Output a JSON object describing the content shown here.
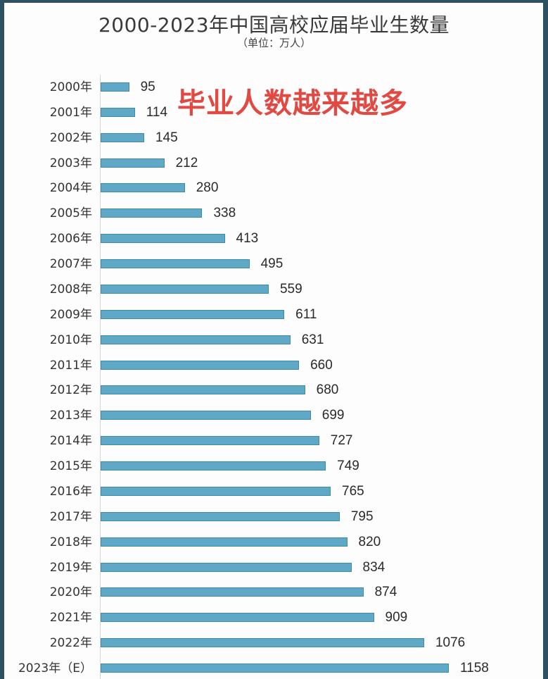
{
  "chart_data": {
    "type": "bar",
    "orientation": "horizontal",
    "title": "2000-2023年中国高校应届毕业生数量",
    "subtitle": "（单位：万人）",
    "annotation": "毕业人数越来越多",
    "xlabel": "",
    "ylabel": "",
    "grid": false,
    "legend": null,
    "categories": [
      "2000年",
      "2001年",
      "2002年",
      "2003年",
      "2004年",
      "2005年",
      "2006年",
      "2007年",
      "2008年",
      "2009年",
      "2010年",
      "2011年",
      "2012年",
      "2013年",
      "2014年",
      "2015年",
      "2016年",
      "2017年",
      "2018年",
      "2019年",
      "2020年",
      "2021年",
      "2022年",
      "2023年（E）"
    ],
    "values": [
      95,
      114,
      145,
      212,
      280,
      338,
      413,
      495,
      559,
      611,
      631,
      660,
      680,
      699,
      727,
      749,
      765,
      795,
      820,
      834,
      874,
      909,
      1076,
      1158
    ],
    "unit": "万人",
    "bar_color": "#5fa9c6",
    "annotation_color": "#e04a43"
  }
}
